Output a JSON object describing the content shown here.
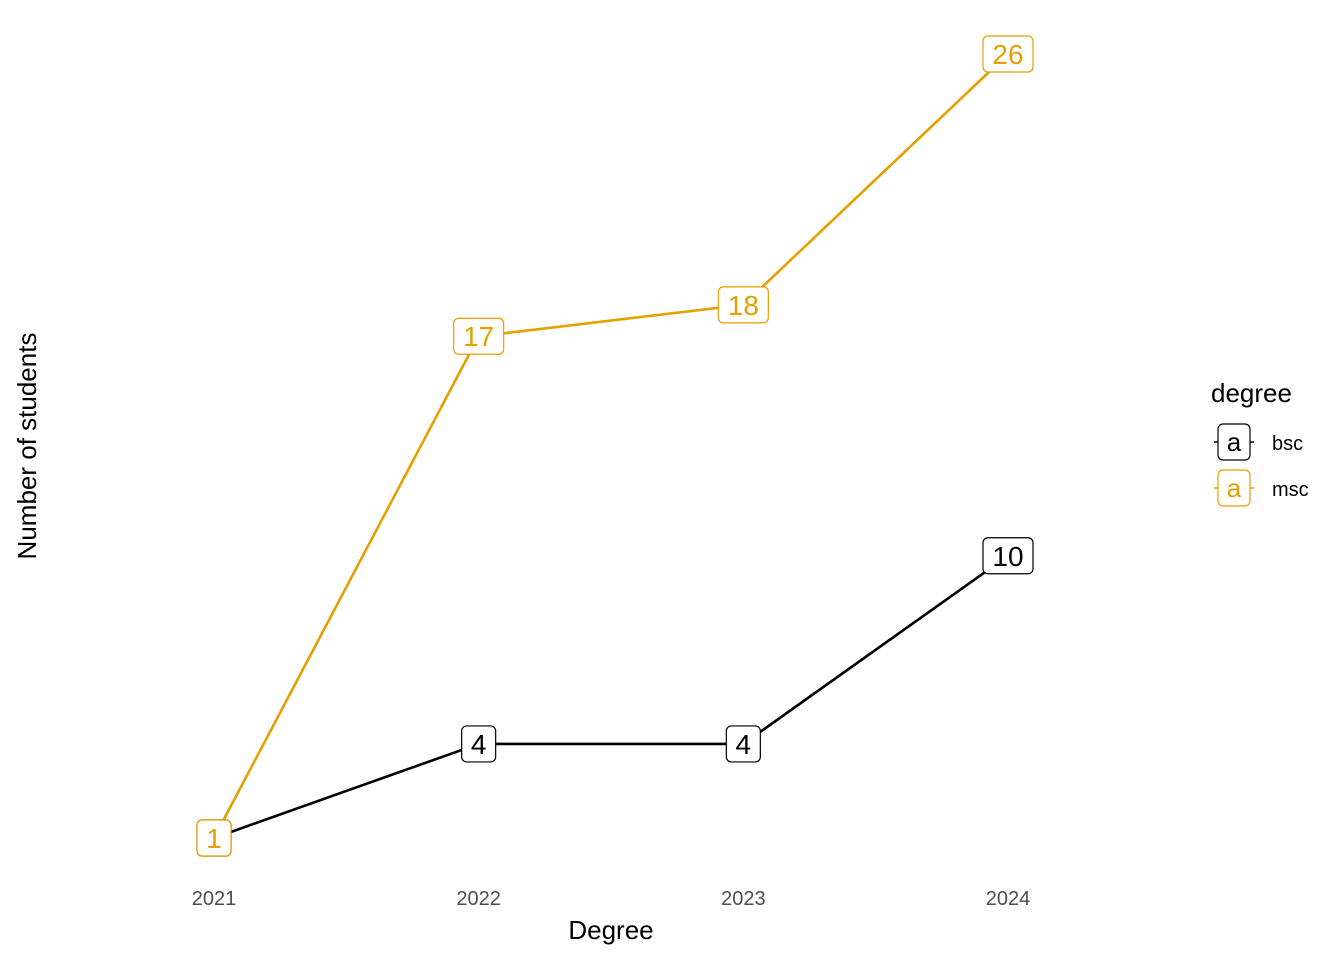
{
  "chart_data": {
    "type": "line",
    "title": "",
    "xlabel": "Degree",
    "ylabel": "Number of students",
    "x": [
      "2021",
      "2022",
      "2023",
      "2024"
    ],
    "ylim": [
      1,
      26
    ],
    "grid": false,
    "legend": {
      "title": "degree",
      "position": "right",
      "key_glyph": "a"
    },
    "series": [
      {
        "name": "bsc",
        "color": "#000000",
        "values": [
          1,
          4,
          4,
          10
        ]
      },
      {
        "name": "msc",
        "color": "#E69F00",
        "values": [
          1,
          17,
          18,
          26
        ]
      }
    ]
  }
}
